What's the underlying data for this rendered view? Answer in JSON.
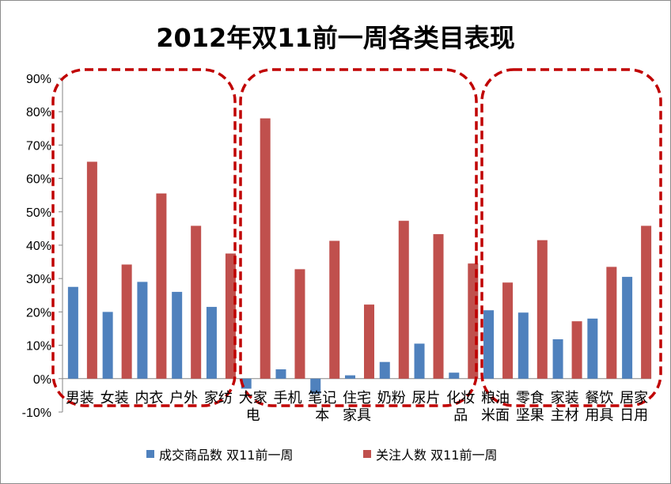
{
  "chart_data": {
    "type": "bar",
    "title": "2012年双11前一周各类目表现",
    "categories": [
      "男装",
      "女装",
      "内衣",
      "户外",
      "家纺",
      "大家电",
      "手机",
      "笔记本",
      "住宅家具",
      "奶粉",
      "尿片",
      "化妆品",
      "粮油米面",
      "零食坚果",
      "家装主材",
      "餐饮用具",
      "居家日用"
    ],
    "category_lines": [
      [
        "男装"
      ],
      [
        "女装"
      ],
      [
        "内衣"
      ],
      [
        "户外"
      ],
      [
        "家纺"
      ],
      [
        "大家",
        "电"
      ],
      [
        "手机"
      ],
      [
        "笔记",
        "本"
      ],
      [
        "住宅",
        "家具"
      ],
      [
        "奶粉"
      ],
      [
        "尿片"
      ],
      [
        "化妆",
        "品"
      ],
      [
        "粮油",
        "米面"
      ],
      [
        "零食",
        "坚果"
      ],
      [
        "家装",
        "主材"
      ],
      [
        "餐饮",
        "用具"
      ],
      [
        "居家",
        "日用"
      ]
    ],
    "series": [
      {
        "name": "成交商品数 双11前一周",
        "color": "#4f81bd",
        "values": [
          0.275,
          0.2,
          0.29,
          0.26,
          0.215,
          -0.03,
          0.028,
          -0.045,
          0.01,
          0.05,
          0.105,
          0.018,
          0.205,
          0.198,
          0.118,
          0.18,
          0.305
        ]
      },
      {
        "name": "关注人数 双11前一周",
        "color": "#c0504d",
        "values": [
          0.65,
          0.342,
          0.555,
          0.458,
          0.375,
          0.78,
          0.328,
          0.413,
          0.222,
          0.473,
          0.433,
          0.345,
          0.288,
          0.415,
          0.172,
          0.335,
          0.458
        ]
      }
    ],
    "ylim": [
      -0.1,
      0.9
    ],
    "yticks": [
      "-10%",
      "0%",
      "10%",
      "20%",
      "30%",
      "40%",
      "50%",
      "60%",
      "70%",
      "80%",
      "90%"
    ],
    "grid": false,
    "legend": "bottom",
    "annotation_color": "#c00000"
  }
}
